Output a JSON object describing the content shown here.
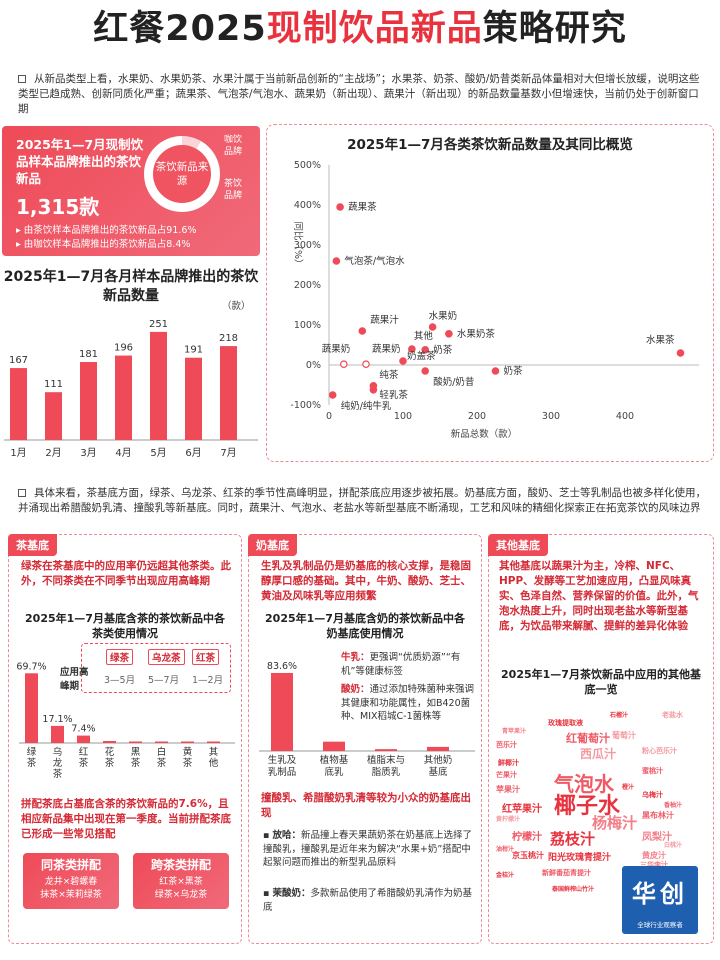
{
  "title": {
    "part1": "红餐2025",
    "highlight": "现制饮品新品",
    "part2": "策略研究"
  },
  "intro_text": "从新品类型上看，水果奶、水果奶茶、水果汁属于当前新品创新的“主战场”；水果茶、奶茶、酸奶/奶昔类新品体量相对大但增长放缓，说明这些类型已趋成熟、创新同质化严重；蔬果茶、气泡茶/气泡水、蔬果奶（新出现）、蔬果汁（新出现）的新品数量基数小但增速快，当前仍处于创新窗口期",
  "summary_card": {
    "heading": "2025年1—7月现制饮品样本品牌推出的茶饮新品",
    "total": "1,315款",
    "note1": "由茶饮样本品牌推出的茶饮新品占91.6%",
    "note2": "由咖饮样本品牌推出的茶饮新品占8.4%",
    "donut_center": "茶饮新品来源",
    "donut_label_coffee": "咖饮品牌",
    "donut_label_tea": "茶饮品牌",
    "tea_share": 91.6,
    "coffee_share": 8.4
  },
  "intro2_text": "具体来看，茶基底方面，绿茶、乌龙茶、红茶的季节性高峰明显，拼配茶底应用逐步被拓展。奶基底方面，酸奶、芝士等乳制品也被多样化使用，并涌现出希腊酸奶乳清、撞酸乳等新基底。同时，蔬果汁、气泡水、老盐水等新型基底不断涌现，工艺和风味的精细化探索正在拓宽茶饮的风味边界",
  "tea_panel": {
    "tag": "茶基底",
    "text": "绿茶在茶基底中的应用率仍远超其他茶类。此外，不同茶类在不同季节出现应用高峰期",
    "sub_title": "2025年1—7月基底含茶的茶饮新品中各茶类使用情况",
    "peak_title": "应用高峰期",
    "peaks": [
      {
        "tea": "绿茶",
        "period": "3—5月"
      },
      {
        "tea": "乌龙茶",
        "period": "5—7月"
      },
      {
        "tea": "红茶",
        "period": "1—2月"
      }
    ],
    "text2": "拼配茶底占基底含茶的茶饮新品的7.6%，且相应新品集中出现在第一季度。当前拼配茶底已形成一些常见搭配",
    "same_type": {
      "title": "同茶类拼配",
      "items": [
        "龙井×碧螺春",
        "抹茶×茉莉绿茶"
      ]
    },
    "cross_type": {
      "title": "跨茶类拼配",
      "items": [
        "红茶×黑茶",
        "绿茶×乌龙茶"
      ]
    }
  },
  "milk_panel": {
    "tag": "奶基底",
    "text": "生乳及乳制品仍是奶基底的核心支撑，是稳固醇厚口感的基础。其中，牛奶、酸奶、芝士、黄油及风味乳等应用频繁",
    "sub_title": "2025年1—7月基底含奶的茶饮新品中各奶基底使用情况",
    "note_milk_label": "牛乳：",
    "note_milk": "更强调“优质奶源”“有机”等健康标签",
    "note_yogurt_label": "酸奶：",
    "note_yogurt": "通过添加特殊菌种来强调其健康和功能属性，如B420菌种、MIX稻城C-1菌株等",
    "text2": "撞酸乳、希腊酸奶乳清等较为小众的奶基底出现",
    "case1_label": "放哈：",
    "case1": "新品撞上春天果蔬奶茶在奶基底上选择了撞酸乳，撞酸乳是近年来为解决“水果+奶”搭配中起絮问题而推出的新型乳品原料",
    "case2_label": "茉酸奶：",
    "case2": "多款新品使用了希腊酸奶乳清作为奶基底"
  },
  "other_panel": {
    "tag": "其他基底",
    "text": "其他基底以蔬果汁为主，冷榨、NFC、HPP、发酵等工艺加速应用，凸显风味真实、色泽自然、营养保留的价值。此外，气泡水热度上升，同时出现老盐水等新型基底，为饮品带来解腻、提鲜的差异化体验",
    "sub_title": "2025年1—7月茶饮新品中应用的其他基底一览",
    "words": [
      {
        "t": "椰子水",
        "s": 22
      },
      {
        "t": "气泡水",
        "s": 20
      },
      {
        "t": "杨梅汁",
        "s": 15
      },
      {
        "t": "荔枝汁",
        "s": 15
      },
      {
        "t": "西瓜汁",
        "s": 12
      },
      {
        "t": "红葡萄汁",
        "s": 11
      },
      {
        "t": "红苹果汁",
        "s": 10
      },
      {
        "t": "柠檬汁",
        "s": 10
      },
      {
        "t": "凤梨汁",
        "s": 10
      },
      {
        "t": "阳光玫瑰青提汁",
        "s": 9
      },
      {
        "t": "葡萄汁",
        "s": 8
      },
      {
        "t": "苹果汁",
        "s": 8
      },
      {
        "t": "京玉桃汁",
        "s": 8
      },
      {
        "t": "黑布林汁",
        "s": 8
      },
      {
        "t": "黄皮汁",
        "s": 8
      },
      {
        "t": "玫瑰提取液",
        "s": 7
      },
      {
        "t": "粉心芭乐汁",
        "s": 7
      },
      {
        "t": "芭乐汁",
        "s": 7
      },
      {
        "t": "乌梅汁",
        "s": 7
      },
      {
        "t": "蜜桃汁",
        "s": 7
      },
      {
        "t": "三华李汁",
        "s": 7
      },
      {
        "t": "鲜椰汁",
        "s": 7
      },
      {
        "t": "老盐水",
        "s": 7
      },
      {
        "t": "新鲜番茄青提汁",
        "s": 7
      },
      {
        "t": "泰国鲜榨山竹汁",
        "s": 6
      },
      {
        "t": "芒果汁",
        "s": 7
      },
      {
        "t": "百香果汁",
        "s": 6
      },
      {
        "t": "石榴汁",
        "s": 6
      },
      {
        "t": "黄柠檬汁",
        "s": 6
      },
      {
        "t": "香柚汁",
        "s": 6
      },
      {
        "t": "橙汁",
        "s": 6
      },
      {
        "t": "油柑汁",
        "s": 6
      },
      {
        "t": "青苹果汁",
        "s": 6
      },
      {
        "t": "金桔汁",
        "s": 6
      },
      {
        "t": "白桃汁",
        "s": 6
      }
    ]
  },
  "chart_data": [
    {
      "type": "bar",
      "title": "2025年1—7月各月样本品牌推出的茶饮新品数量",
      "unit": "（款）",
      "categories": [
        "1月",
        "2月",
        "3月",
        "4月",
        "5月",
        "6月",
        "7月"
      ],
      "values": [
        167,
        111,
        181,
        196,
        251,
        191,
        218
      ],
      "color": "#ef4a57"
    },
    {
      "type": "scatter",
      "title": "2025年1—7月各类茶饮新品数量及其同比概览",
      "xlabel": "新品总数（款）",
      "ylabel": "同比（%）",
      "xlim": [
        0,
        500
      ],
      "ylim": [
        -100,
        500
      ],
      "xticks": [
        0,
        100,
        200,
        300,
        400,
        500
      ],
      "yticks": [
        -100,
        0,
        100,
        200,
        300,
        400,
        500
      ],
      "points": [
        {
          "label": "蔬果茶",
          "x": 15,
          "y": 395
        },
        {
          "label": "气泡茶/气泡水",
          "x": 10,
          "y": 260
        },
        {
          "label": "蔬果汁",
          "x": 45,
          "y": 85
        },
        {
          "label": "水果奶",
          "x": 140,
          "y": 95
        },
        {
          "label": "水果奶茶",
          "x": 162,
          "y": 78
        },
        {
          "label": "水果茶",
          "x": 475,
          "y": 30
        },
        {
          "label": "其他",
          "x": 112,
          "y": 40
        },
        {
          "label": "蔬果奶",
          "x": 20,
          "y": 2
        },
        {
          "label": "蔬果奶",
          "x": 50,
          "y": 2
        },
        {
          "label": "奶茶",
          "x": 130,
          "y": 38
        },
        {
          "label": "奶盖茶",
          "x": 100,
          "y": 10
        },
        {
          "label": "奶茶",
          "x": 225,
          "y": -15
        },
        {
          "label": "酸奶/奶昔",
          "x": 130,
          "y": -15
        },
        {
          "label": "纯茶",
          "x": 60,
          "y": -52
        },
        {
          "label": "轻乳茶",
          "x": 60,
          "y": -62
        },
        {
          "label": "纯奶/纯牛乳",
          "x": 5,
          "y": -75
        }
      ],
      "color": "#ef4a57"
    },
    {
      "type": "bar",
      "title": "2025年1—7月基底含茶的茶饮新品中各茶类使用情况",
      "categories": [
        "绿茶",
        "乌龙茶",
        "红茶",
        "花茶",
        "黑茶",
        "白茶",
        "黄茶",
        "其他"
      ],
      "values": [
        69.7,
        17.1,
        7.4,
        2.0,
        1.5,
        1.0,
        0.5,
        0.8
      ],
      "labels_shown": [
        "69.7%",
        "17.1%",
        "7.4%"
      ],
      "color": "#ef4a57"
    },
    {
      "type": "bar",
      "title": "2025年1—7月基底含奶的茶饮新品中各奶基底使用情况",
      "categories": [
        "生乳及乳制品",
        "植物基底乳",
        "植脂末与脂质乳",
        "其他奶基底"
      ],
      "values": [
        83.6,
        10.0,
        2.0,
        4.4
      ],
      "labels_shown": [
        "83.6%"
      ],
      "color": "#ef4a57"
    }
  ],
  "logo": {
    "text": "华创",
    "subtext": "全球行业观察者"
  }
}
